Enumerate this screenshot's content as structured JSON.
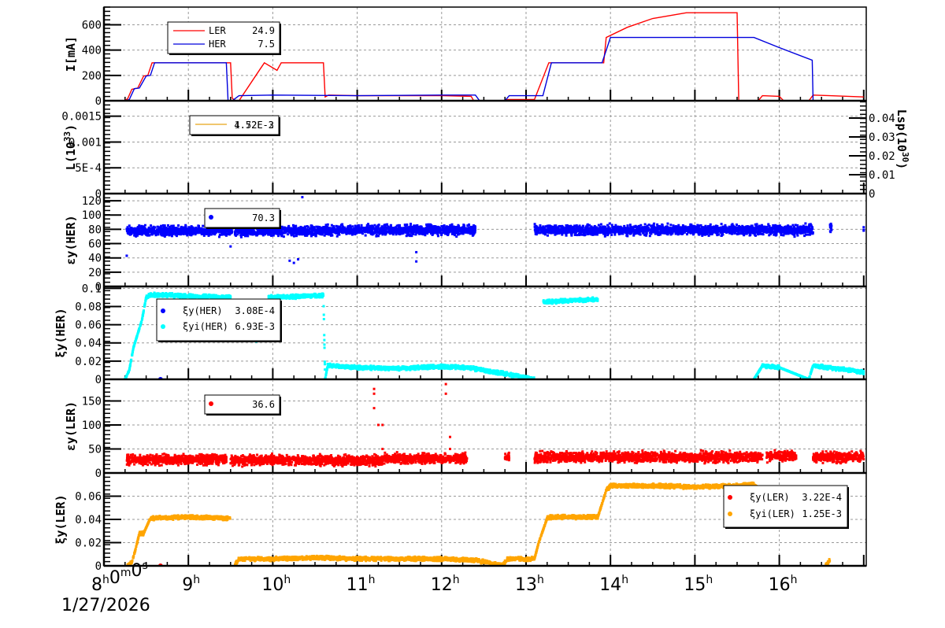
{
  "chart_data": [
    {
      "type": "line",
      "title": "Beam current",
      "ylabel": "I[mA]",
      "ylim": [
        0,
        740
      ],
      "yticks": [
        "0",
        "200",
        "400",
        "600"
      ],
      "grid": true,
      "legend": [
        {
          "name": "LER",
          "value": "24.9",
          "color": "#ff0000"
        },
        {
          "name": "HER",
          "value": "7.5",
          "color": "#0000dd"
        }
      ],
      "series": [
        {
          "name": "LER",
          "color": "#ff0000",
          "x": [
            8.0,
            8.24,
            8.28,
            8.33,
            8.4,
            8.47,
            8.52,
            8.57,
            9.0,
            9.5,
            9.52,
            9.56,
            9.6,
            9.85,
            9.9,
            10.05,
            10.1,
            10.6,
            10.62,
            10.66,
            11.0,
            12.0,
            12.35,
            12.38,
            12.75,
            12.78,
            13.1,
            13.27,
            13.5,
            13.92,
            13.95,
            14.2,
            14.5,
            14.9,
            15.5,
            15.52,
            15.75,
            15.8,
            16.0,
            16.05,
            16.35,
            16.4,
            16.6,
            17.0
          ],
          "y": [
            0,
            0,
            15,
            90,
            100,
            195,
            200,
            300,
            300,
            300,
            20,
            0,
            0,
            250,
            300,
            240,
            300,
            300,
            30,
            45,
            40,
            40,
            35,
            0,
            0,
            10,
            10,
            300,
            300,
            300,
            500,
            580,
            650,
            695,
            695,
            0,
            0,
            40,
            35,
            0,
            0,
            45,
            40,
            30
          ]
        },
        {
          "name": "HER",
          "color": "#0000dd",
          "x": [
            8.0,
            8.26,
            8.3,
            8.36,
            8.42,
            8.5,
            8.55,
            8.6,
            9.0,
            9.45,
            9.47,
            9.52,
            9.6,
            10.0,
            11.0,
            12.0,
            12.4,
            12.45,
            12.75,
            12.8,
            13.1,
            13.2,
            13.3,
            13.9,
            14.0,
            15.0,
            15.7,
            16.0,
            16.39,
            16.4,
            16.6,
            17.0
          ],
          "y": [
            0,
            0,
            10,
            95,
            100,
            195,
            200,
            300,
            300,
            300,
            0,
            0,
            40,
            45,
            40,
            45,
            45,
            0,
            0,
            40,
            40,
            40,
            300,
            300,
            500,
            500,
            500,
            420,
            320,
            0,
            0,
            0
          ]
        }
      ]
    },
    {
      "type": "line",
      "ylabel": "L(10^33)",
      "y2label": "Lsp(10^30)",
      "ylim": [
        0,
        0.0018
      ],
      "yticks": [
        "0",
        "5E-4",
        "0.001",
        "0.0015"
      ],
      "y2ticks": [
        "0",
        "0.01",
        "0.02",
        "0.03",
        "0.04"
      ],
      "grid": true,
      "legend": [
        {
          "name": "",
          "value": "4.52E-3 / 1.72E-2 (overlapping text)",
          "color": "#e8a317"
        }
      ],
      "series": []
    },
    {
      "type": "scatter",
      "ylabel": "εy(HER)",
      "ylim": [
        0,
        130
      ],
      "yticks": [
        "0",
        "20",
        "40",
        "60",
        "80",
        "100",
        "120"
      ],
      "grid": true,
      "legend": [
        {
          "name": "",
          "value": "70.3",
          "color": "#0000ff"
        }
      ],
      "series": [
        {
          "name": "εy(HER)",
          "color": "#0000ff",
          "bands": [
            [
              8.27,
              9.52,
              78
            ],
            [
              9.55,
              10.6,
              78
            ],
            [
              10.6,
              12.4,
              79
            ],
            [
              13.1,
              16.4,
              79
            ],
            [
              16.6,
              16.62,
              82
            ],
            [
              17.0,
              17.0,
              84
            ]
          ],
          "outliers": [
            [
              8.27,
              43
            ],
            [
              9.5,
              56
            ],
            [
              10.2,
              36
            ],
            [
              10.25,
              33
            ],
            [
              10.3,
              38
            ],
            [
              10.35,
              125
            ],
            [
              11.7,
              35
            ],
            [
              11.7,
              48
            ]
          ]
        }
      ]
    },
    {
      "type": "scatter",
      "ylabel": "ξy(HER)",
      "ylim": [
        0,
        0.102
      ],
      "yticks": [
        "0",
        "0.02",
        "0.04",
        "0.06",
        "0.08",
        "0.1"
      ],
      "grid": true,
      "legend": [
        {
          "name": "ξy(HER)",
          "value": "3.08E-4",
          "color": "#0000ff"
        },
        {
          "name": "ξyi(HER)",
          "value": "6.93E-3",
          "color": "#00ffff"
        }
      ],
      "series": [
        {
          "name": "ξy(HER)",
          "color": "#0000ff",
          "points": [
            [
              8.67,
              0
            ]
          ]
        },
        {
          "name": "ξyi(HER)",
          "color": "#00ffff",
          "x": [
            8.25,
            8.3,
            8.35,
            8.4,
            8.45,
            8.5,
            8.55,
            9.5,
            9.6,
            9.8,
            9.95,
            10.6,
            10.62,
            10.65,
            11.0,
            11.5,
            12.0,
            12.3,
            12.75,
            13.1,
            13.2,
            13.85,
            15.7,
            15.8,
            16.0,
            16.35,
            16.4,
            17.0
          ],
          "y": [
            0,
            0.01,
            0.035,
            0.05,
            0.065,
            0.09,
            0.093,
            0.09,
            0,
            0.04,
            0.09,
            0.092,
            0,
            0.015,
            0.013,
            0.012,
            0.014,
            0.013,
            0.006,
            0,
            0.085,
            0.088,
            0,
            0.015,
            0.013,
            0,
            0.015,
            0.008
          ]
        }
      ]
    },
    {
      "type": "scatter",
      "ylabel": "εy(LER)",
      "ylim": [
        0,
        195
      ],
      "yticks": [
        "0",
        "50",
        "100",
        "150"
      ],
      "grid": true,
      "legend": [
        {
          "name": "",
          "value": "36.6",
          "color": "#ff0000"
        }
      ],
      "series": [
        {
          "name": "εy(LER)",
          "color": "#ff0000",
          "bands": [
            [
              8.27,
              9.45,
              28
            ],
            [
              9.5,
              10.6,
              27
            ],
            [
              10.6,
              11.3,
              26
            ],
            [
              11.3,
              12.3,
              30
            ],
            [
              12.75,
              12.8,
              33
            ],
            [
              13.1,
              15.8,
              33
            ],
            [
              15.85,
              16.2,
              35
            ],
            [
              16.4,
              17.0,
              33
            ]
          ],
          "outliers": [
            [
              11.2,
              175
            ],
            [
              11.2,
              165
            ],
            [
              11.2,
              135
            ],
            [
              11.25,
              100
            ],
            [
              11.3,
              100
            ],
            [
              11.3,
              50
            ],
            [
              12.05,
              185
            ],
            [
              12.05,
              165
            ],
            [
              12.1,
              75
            ],
            [
              12.1,
              50
            ]
          ]
        }
      ]
    },
    {
      "type": "scatter",
      "ylabel": "ξy(LER)",
      "ylim": [
        0,
        0.08
      ],
      "yticks": [
        "0",
        "0.02",
        "0.04",
        "0.06"
      ],
      "xticks": [
        "8h0m0s",
        "9h",
        "10h",
        "11h",
        "12h",
        "13h",
        "14h",
        "15h",
        "16h"
      ],
      "xlabel_date": "1/27/2026",
      "grid": true,
      "legend": [
        {
          "name": "ξy(LER)",
          "value": "3.22E-4",
          "color": "#ff0000"
        },
        {
          "name": "ξyi(LER)",
          "value": "1.25E-3",
          "color": "#ffa500"
        }
      ],
      "series": [
        {
          "name": "ξy(LER)",
          "color": "#ff0000",
          "points": [
            [
              8.67,
              0
            ]
          ]
        },
        {
          "name": "ξyi(LER)",
          "color": "#ffa500",
          "x": [
            8.28,
            8.33,
            8.37,
            8.42,
            8.47,
            8.55,
            9.0,
            9.5,
            9.55,
            9.6,
            10.0,
            10.5,
            11.0,
            11.5,
            12.0,
            12.4,
            12.72,
            12.78,
            13.1,
            13.15,
            13.25,
            13.3,
            13.85,
            13.95,
            14.0,
            14.5,
            15.0,
            15.5,
            15.7,
            16.0,
            16.35,
            16.55,
            16.6
          ],
          "y": [
            0,
            0.003,
            0.013,
            0.028,
            0.028,
            0.041,
            0.042,
            0.041,
            0,
            0.006,
            0.006,
            0.007,
            0.006,
            0.006,
            0.006,
            0.005,
            0,
            0.006,
            0.006,
            0.02,
            0.041,
            0.042,
            0.042,
            0.065,
            0.069,
            0.069,
            0.068,
            0.069,
            0.07,
            0.055,
            0.042,
            0,
            0.005
          ]
        }
      ]
    }
  ],
  "axis": {
    "x_date": "1/27/2026",
    "x_first_label": "8h0m0s",
    "x_hour_labels": [
      "9",
      "10",
      "11",
      "12",
      "13",
      "14",
      "15",
      "16"
    ],
    "x_hour_suffix": "h"
  },
  "panes": {
    "current": {
      "ylabel": "I[mA]",
      "legend": [
        {
          "name": "LER",
          "value": "24.9"
        },
        {
          "name": "HER",
          "value": "7.5"
        }
      ]
    },
    "lumi": {
      "ylabel_main": "L(10",
      "ylabel_exp": "33",
      "y2label_main": "Lsp(10",
      "y2label_exp": "30",
      "legend_text_a": "4.52E-3",
      "legend_text_b": "1.72E-2"
    },
    "emit_her": {
      "ylabel": "εy(HER)",
      "legend_value": "70.3"
    },
    "xi_her": {
      "ylabel": "ξy(HER)",
      "legend": [
        {
          "name": "ξy(HER)",
          "value": "3.08E-4"
        },
        {
          "name": "ξyi(HER)",
          "value": "6.93E-3"
        }
      ]
    },
    "emit_ler": {
      "ylabel": "εy(LER)",
      "legend_value": "36.6"
    },
    "xi_ler": {
      "ylabel": "ξy(LER)",
      "legend": [
        {
          "name": "ξy(LER)",
          "value": "3.22E-4"
        },
        {
          "name": "ξyi(LER)",
          "value": "1.25E-3"
        }
      ]
    }
  },
  "colors": {
    "ler": "#ff0000",
    "her": "#0000dd",
    "her_pt": "#0000ff",
    "cyan": "#00ffff",
    "orange": "#ffa500",
    "lumi": "#e8a317",
    "grid": "#999999"
  }
}
